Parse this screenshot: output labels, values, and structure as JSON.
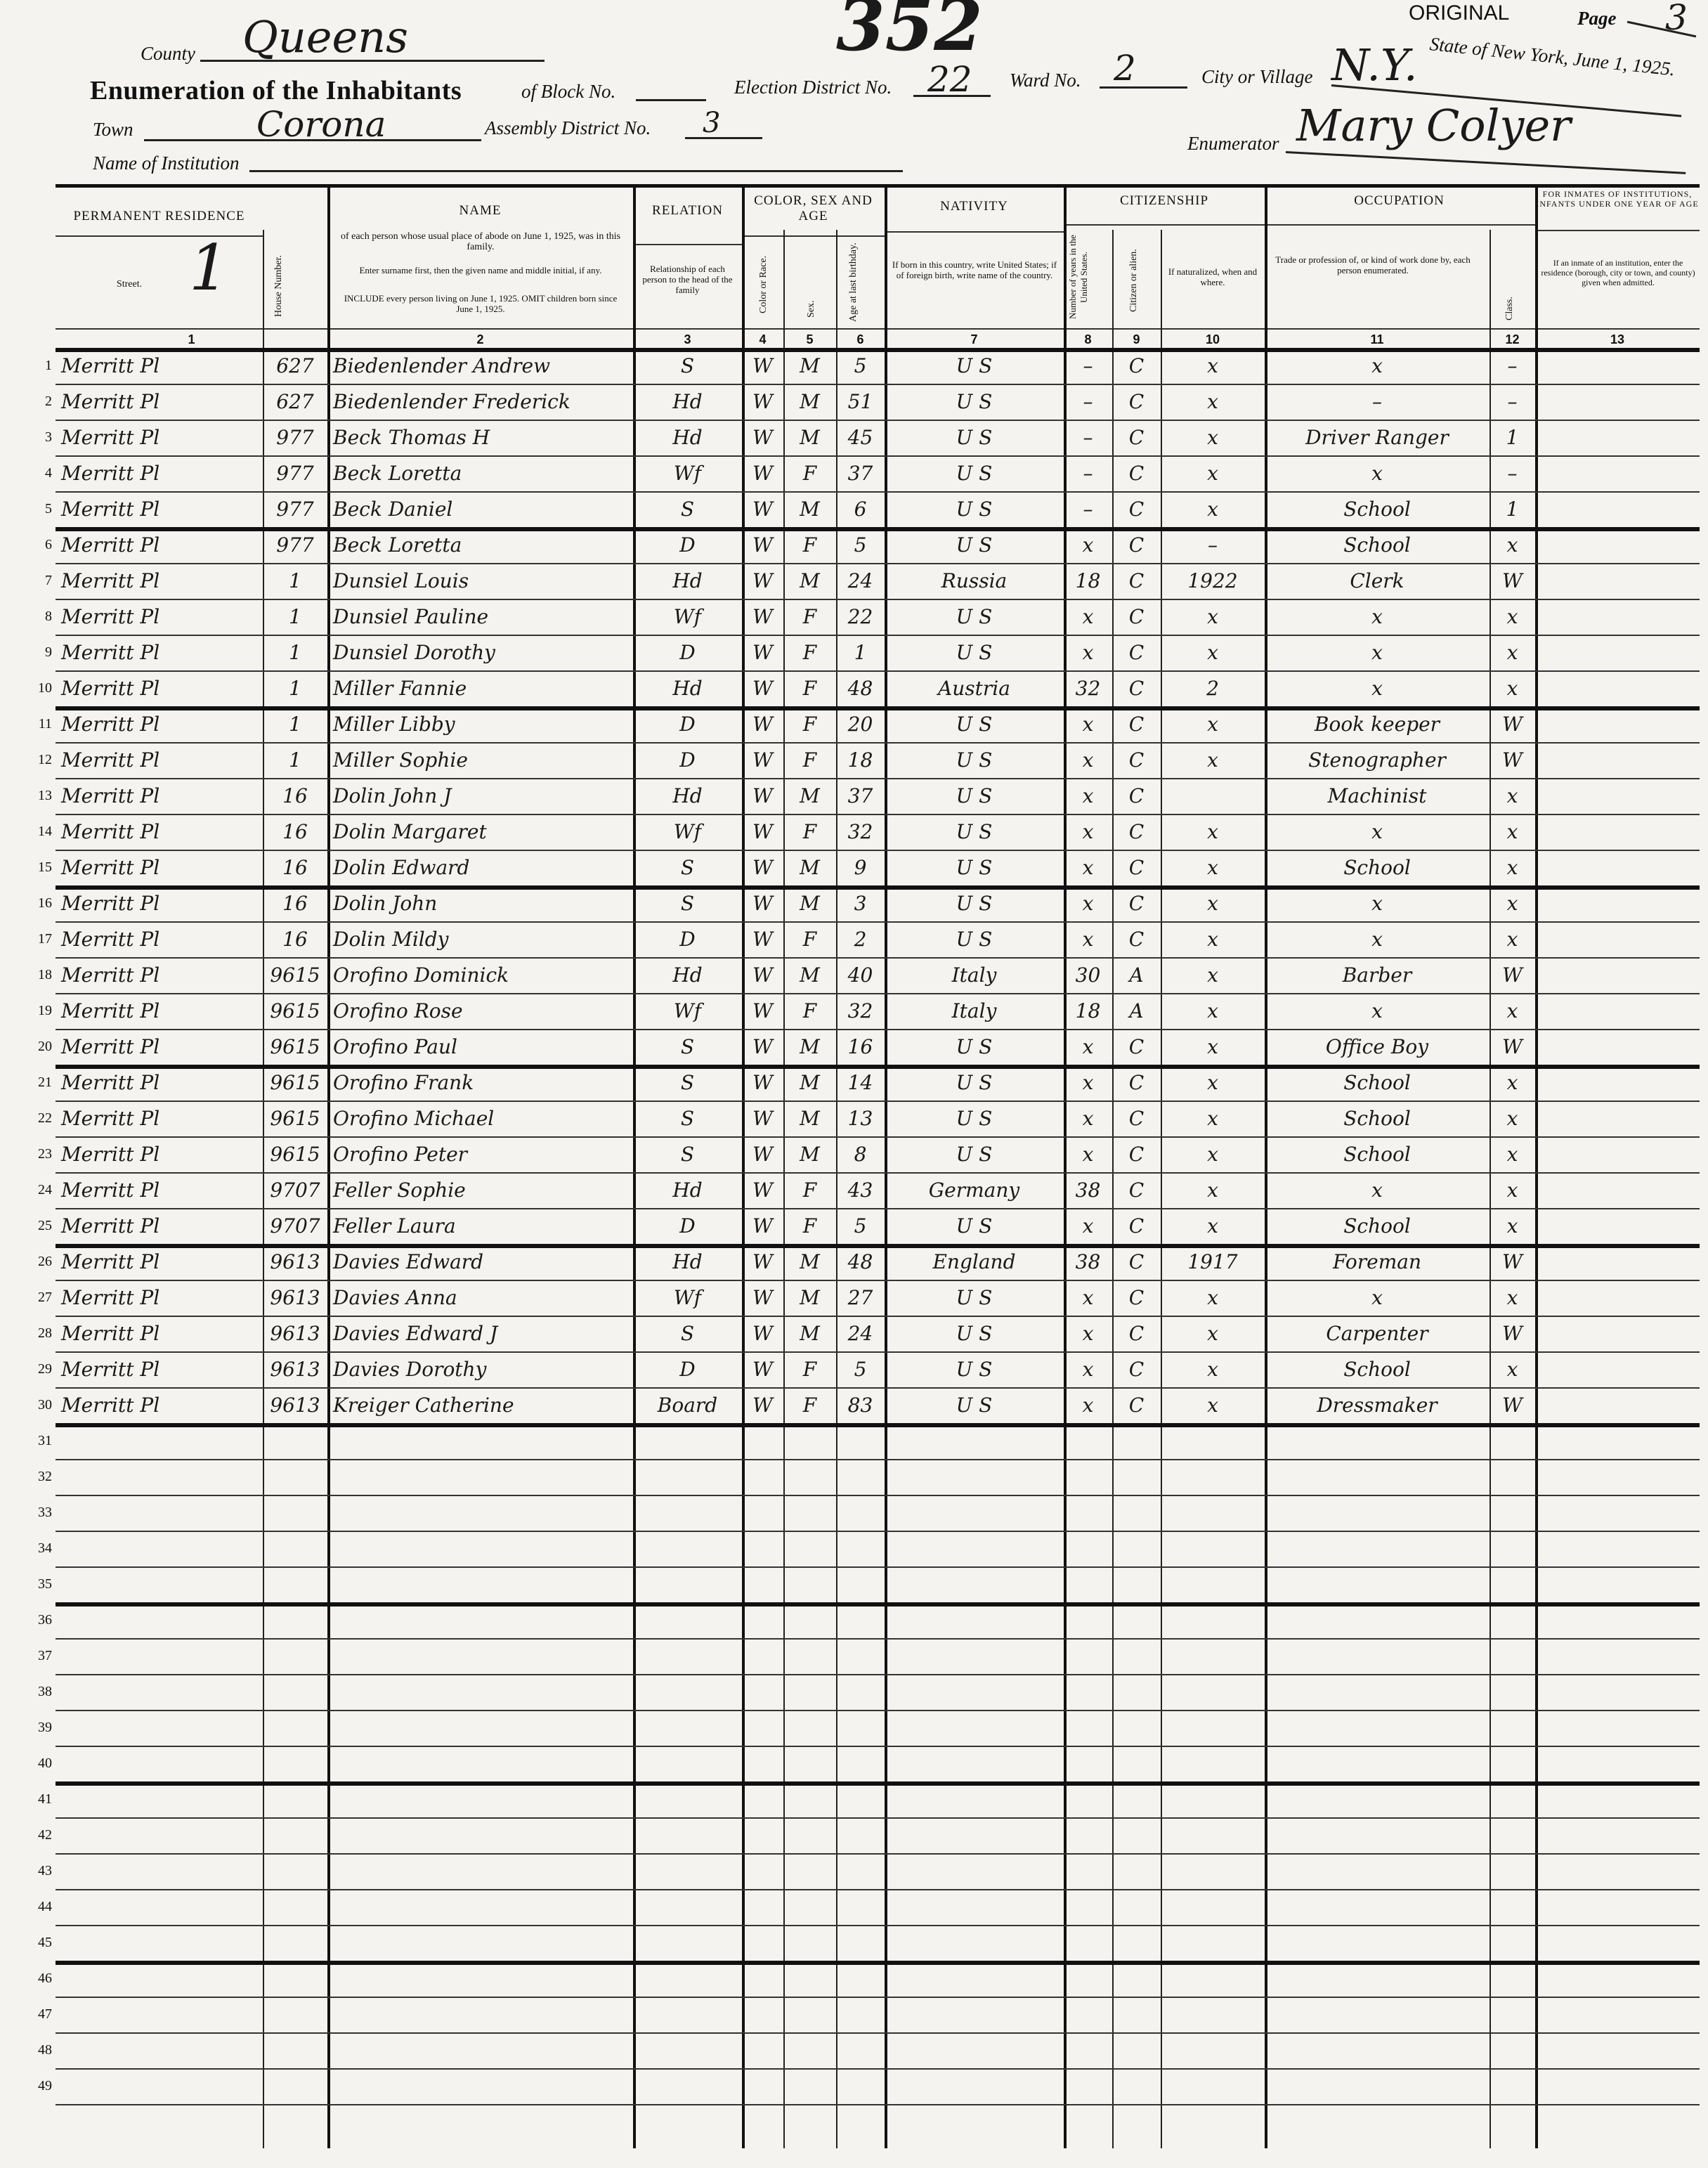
{
  "header": {
    "stamp_number": "352",
    "original_label": "ORIGINAL",
    "page_label": "Page",
    "page_value": "3",
    "state_date": "State of New York, June 1, 1925.",
    "county_label": "County",
    "county_value": "Queens",
    "title": "Enumeration of the Inhabitants",
    "block_label": "of Block No.",
    "block_value": "",
    "election_district_label": "Election District No.",
    "election_district_value": "22",
    "ward_label": "Ward No.",
    "ward_value": "2",
    "city_label": "City or Village",
    "city_value": "N.Y.",
    "town_label": "Town",
    "town_value": "Corona",
    "assembly_label": "Assembly District No.",
    "assembly_value": "3",
    "institution_label": "Name of Institution",
    "institution_value": "",
    "enumerator_label": "Enumerator",
    "enumerator_value": "Mary Colyer"
  },
  "columns": {
    "groups": {
      "residence": "PERMANENT RESIDENCE",
      "name": "NAME",
      "relation": "RELATION",
      "color_sex_age": "COLOR, SEX AND AGE",
      "nativity": "NATIVITY",
      "citizenship": "CITIZENSHIP",
      "occupation": "OCCUPATION",
      "inmates": "FOR INMATES OF INSTITUTIONS, INFANTS UNDER ONE YEAR OF AGE"
    },
    "sub": {
      "street": "Street.",
      "street_mark": "1",
      "house": "House Number.",
      "name_1": "of each person whose usual place of abode on June 1, 1925, was in this family.",
      "name_2": "Enter surname first, then the given name and middle initial, if any.",
      "name_3": "INCLUDE every person living on June 1, 1925. OMIT children born since June 1, 1925.",
      "relation": "Relationship of each person to the head of the family",
      "color": "Color or Race.",
      "sex": "Sex.",
      "age": "Age at last birthday.",
      "nativity": "If born in this country, write United States; if of foreign birth, write name of the country.",
      "years": "Number of years in the United States.",
      "citizen": "Citizen or alien.",
      "naturalized": "If naturalized, when and where.",
      "occupation": "Trade or profession of, or kind of work done by, each person enumerated.",
      "class": "Class.",
      "inmates": "If an inmate of an institution, enter the residence (borough, city or town, and county) given when admitted."
    },
    "numbers": [
      "1",
      "2",
      "3",
      "4",
      "5",
      "6",
      "7",
      "8",
      "9",
      "10",
      "11",
      "12",
      "13"
    ]
  },
  "rows": [
    {
      "n": "1",
      "street": "Merritt Pl",
      "house": "627",
      "name": "Biedenlender Andrew",
      "rel": "S",
      "color": "W",
      "sex": "M",
      "age": "5",
      "nat": "U S",
      "years": "–",
      "cit": "C",
      "natz": "x",
      "occ": "x",
      "cls": "–"
    },
    {
      "n": "2",
      "street": "Merritt Pl",
      "house": "627",
      "name": "Biedenlender Frederick",
      "rel": "Hd",
      "color": "W",
      "sex": "M",
      "age": "51",
      "nat": "U S",
      "years": "–",
      "cit": "C",
      "natz": "x",
      "occ": "–",
      "cls": "–"
    },
    {
      "n": "3",
      "street": "Merritt Pl",
      "house": "977",
      "name": "Beck Thomas H",
      "rel": "Hd",
      "color": "W",
      "sex": "M",
      "age": "45",
      "nat": "U S",
      "years": "–",
      "cit": "C",
      "natz": "x",
      "occ": "Driver Ranger",
      "cls": "1"
    },
    {
      "n": "4",
      "street": "Merritt Pl",
      "house": "977",
      "name": "Beck Loretta",
      "rel": "Wf",
      "color": "W",
      "sex": "F",
      "age": "37",
      "nat": "U S",
      "years": "–",
      "cit": "C",
      "natz": "x",
      "occ": "x",
      "cls": "–"
    },
    {
      "n": "5",
      "street": "Merritt Pl",
      "house": "977",
      "name": "Beck Daniel",
      "rel": "S",
      "color": "W",
      "sex": "M",
      "age": "6",
      "nat": "U S",
      "years": "–",
      "cit": "C",
      "natz": "x",
      "occ": "School",
      "cls": "1"
    },
    {
      "n": "6",
      "street": "Merritt Pl",
      "house": "977",
      "name": "Beck Loretta",
      "rel": "D",
      "color": "W",
      "sex": "F",
      "age": "5",
      "nat": "U S",
      "years": "x",
      "cit": "C",
      "natz": "–",
      "occ": "School",
      "cls": "x"
    },
    {
      "n": "7",
      "street": "Merritt Pl",
      "house": "1",
      "name": "Dunsiel Louis",
      "rel": "Hd",
      "color": "W",
      "sex": "M",
      "age": "24",
      "nat": "Russia",
      "years": "18",
      "cit": "C",
      "natz": "1922",
      "occ": "Clerk",
      "cls": "W"
    },
    {
      "n": "8",
      "street": "Merritt Pl",
      "house": "1",
      "name": "Dunsiel Pauline",
      "rel": "Wf",
      "color": "W",
      "sex": "F",
      "age": "22",
      "nat": "U S",
      "years": "x",
      "cit": "C",
      "natz": "x",
      "occ": "x",
      "cls": "x"
    },
    {
      "n": "9",
      "street": "Merritt Pl",
      "house": "1",
      "name": "Dunsiel Dorothy",
      "rel": "D",
      "color": "W",
      "sex": "F",
      "age": "1",
      "nat": "U S",
      "years": "x",
      "cit": "C",
      "natz": "x",
      "occ": "x",
      "cls": "x"
    },
    {
      "n": "10",
      "street": "Merritt Pl",
      "house": "1",
      "name": "Miller Fannie",
      "rel": "Hd",
      "color": "W",
      "sex": "F",
      "age": "48",
      "nat": "Austria",
      "years": "32",
      "cit": "C",
      "natz": "2",
      "occ": "x",
      "cls": "x"
    },
    {
      "n": "11",
      "street": "Merritt Pl",
      "house": "1",
      "name": "Miller Libby",
      "rel": "D",
      "color": "W",
      "sex": "F",
      "age": "20",
      "nat": "U S",
      "years": "x",
      "cit": "C",
      "natz": "x",
      "occ": "Book keeper",
      "cls": "W"
    },
    {
      "n": "12",
      "street": "Merritt Pl",
      "house": "1",
      "name": "Miller Sophie",
      "rel": "D",
      "color": "W",
      "sex": "F",
      "age": "18",
      "nat": "U S",
      "years": "x",
      "cit": "C",
      "natz": "x",
      "occ": "Stenographer",
      "cls": "W"
    },
    {
      "n": "13",
      "street": "Merritt Pl",
      "house": "16",
      "name": "Dolin John J",
      "rel": "Hd",
      "color": "W",
      "sex": "M",
      "age": "37",
      "nat": "U S",
      "years": "x",
      "cit": "C",
      "natz": "",
      "occ": "Machinist",
      "cls": "x"
    },
    {
      "n": "14",
      "street": "Merritt Pl",
      "house": "16",
      "name": "Dolin Margaret",
      "rel": "Wf",
      "color": "W",
      "sex": "F",
      "age": "32",
      "nat": "U S",
      "years": "x",
      "cit": "C",
      "natz": "x",
      "occ": "x",
      "cls": "x"
    },
    {
      "n": "15",
      "street": "Merritt Pl",
      "house": "16",
      "name": "Dolin Edward",
      "rel": "S",
      "color": "W",
      "sex": "M",
      "age": "9",
      "nat": "U S",
      "years": "x",
      "cit": "C",
      "natz": "x",
      "occ": "School",
      "cls": "x"
    },
    {
      "n": "16",
      "street": "Merritt Pl",
      "house": "16",
      "name": "Dolin John",
      "rel": "S",
      "color": "W",
      "sex": "M",
      "age": "3",
      "nat": "U S",
      "years": "x",
      "cit": "C",
      "natz": "x",
      "occ": "x",
      "cls": "x"
    },
    {
      "n": "17",
      "street": "Merritt Pl",
      "house": "16",
      "name": "Dolin Mildy",
      "rel": "D",
      "color": "W",
      "sex": "F",
      "age": "2",
      "nat": "U S",
      "years": "x",
      "cit": "C",
      "natz": "x",
      "occ": "x",
      "cls": "x"
    },
    {
      "n": "18",
      "street": "Merritt Pl",
      "house": "9615",
      "name": "Orofino Dominick",
      "rel": "Hd",
      "color": "W",
      "sex": "M",
      "age": "40",
      "nat": "Italy",
      "years": "30",
      "cit": "A",
      "natz": "x",
      "occ": "Barber",
      "cls": "W"
    },
    {
      "n": "19",
      "street": "Merritt Pl",
      "house": "9615",
      "name": "Orofino Rose",
      "rel": "Wf",
      "color": "W",
      "sex": "F",
      "age": "32",
      "nat": "Italy",
      "years": "18",
      "cit": "A",
      "natz": "x",
      "occ": "x",
      "cls": "x"
    },
    {
      "n": "20",
      "street": "Merritt Pl",
      "house": "9615",
      "name": "Orofino Paul",
      "rel": "S",
      "color": "W",
      "sex": "M",
      "age": "16",
      "nat": "U S",
      "years": "x",
      "cit": "C",
      "natz": "x",
      "occ": "Office Boy",
      "cls": "W"
    },
    {
      "n": "21",
      "street": "Merritt Pl",
      "house": "9615",
      "name": "Orofino Frank",
      "rel": "S",
      "color": "W",
      "sex": "M",
      "age": "14",
      "nat": "U S",
      "years": "x",
      "cit": "C",
      "natz": "x",
      "occ": "School",
      "cls": "x"
    },
    {
      "n": "22",
      "street": "Merritt Pl",
      "house": "9615",
      "name": "Orofino Michael",
      "rel": "S",
      "color": "W",
      "sex": "M",
      "age": "13",
      "nat": "U S",
      "years": "x",
      "cit": "C",
      "natz": "x",
      "occ": "School",
      "cls": "x"
    },
    {
      "n": "23",
      "street": "Merritt Pl",
      "house": "9615",
      "name": "Orofino Peter",
      "rel": "S",
      "color": "W",
      "sex": "M",
      "age": "8",
      "nat": "U S",
      "years": "x",
      "cit": "C",
      "natz": "x",
      "occ": "School",
      "cls": "x"
    },
    {
      "n": "24",
      "street": "Merritt Pl",
      "house": "9707",
      "name": "Feller Sophie",
      "rel": "Hd",
      "color": "W",
      "sex": "F",
      "age": "43",
      "nat": "Germany",
      "years": "38",
      "cit": "C",
      "natz": "x",
      "occ": "x",
      "cls": "x"
    },
    {
      "n": "25",
      "street": "Merritt Pl",
      "house": "9707",
      "name": "Feller Laura",
      "rel": "D",
      "color": "W",
      "sex": "F",
      "age": "5",
      "nat": "U S",
      "years": "x",
      "cit": "C",
      "natz": "x",
      "occ": "School",
      "cls": "x"
    },
    {
      "n": "26",
      "street": "Merritt Pl",
      "house": "9613",
      "name": "Davies Edward",
      "rel": "Hd",
      "color": "W",
      "sex": "M",
      "age": "48",
      "nat": "England",
      "years": "38",
      "cit": "C",
      "natz": "1917",
      "occ": "Foreman",
      "cls": "W"
    },
    {
      "n": "27",
      "street": "Merritt Pl",
      "house": "9613",
      "name": "Davies Anna",
      "rel": "Wf",
      "color": "W",
      "sex": "M",
      "age": "27",
      "nat": "U S",
      "years": "x",
      "cit": "C",
      "natz": "x",
      "occ": "x",
      "cls": "x"
    },
    {
      "n": "28",
      "street": "Merritt Pl",
      "house": "9613",
      "name": "Davies Edward J",
      "rel": "S",
      "color": "W",
      "sex": "M",
      "age": "24",
      "nat": "U S",
      "years": "x",
      "cit": "C",
      "natz": "x",
      "occ": "Carpenter",
      "cls": "W"
    },
    {
      "n": "29",
      "street": "Merritt Pl",
      "house": "9613",
      "name": "Davies Dorothy",
      "rel": "D",
      "color": "W",
      "sex": "F",
      "age": "5",
      "nat": "U S",
      "years": "x",
      "cit": "C",
      "natz": "x",
      "occ": "School",
      "cls": "x"
    },
    {
      "n": "30",
      "street": "Merritt Pl",
      "house": "9613",
      "name": "Kreiger Catherine",
      "rel": "Board",
      "color": "W",
      "sex": "F",
      "age": "83",
      "nat": "U S",
      "years": "x",
      "cit": "C",
      "natz": "x",
      "occ": "Dressmaker",
      "cls": "W"
    }
  ],
  "blank_row_numbers": [
    "31",
    "32",
    "33",
    "34",
    "35",
    "36",
    "37",
    "38",
    "39",
    "40",
    "41",
    "42",
    "43",
    "44",
    "45",
    "46",
    "47",
    "48",
    "49"
  ]
}
